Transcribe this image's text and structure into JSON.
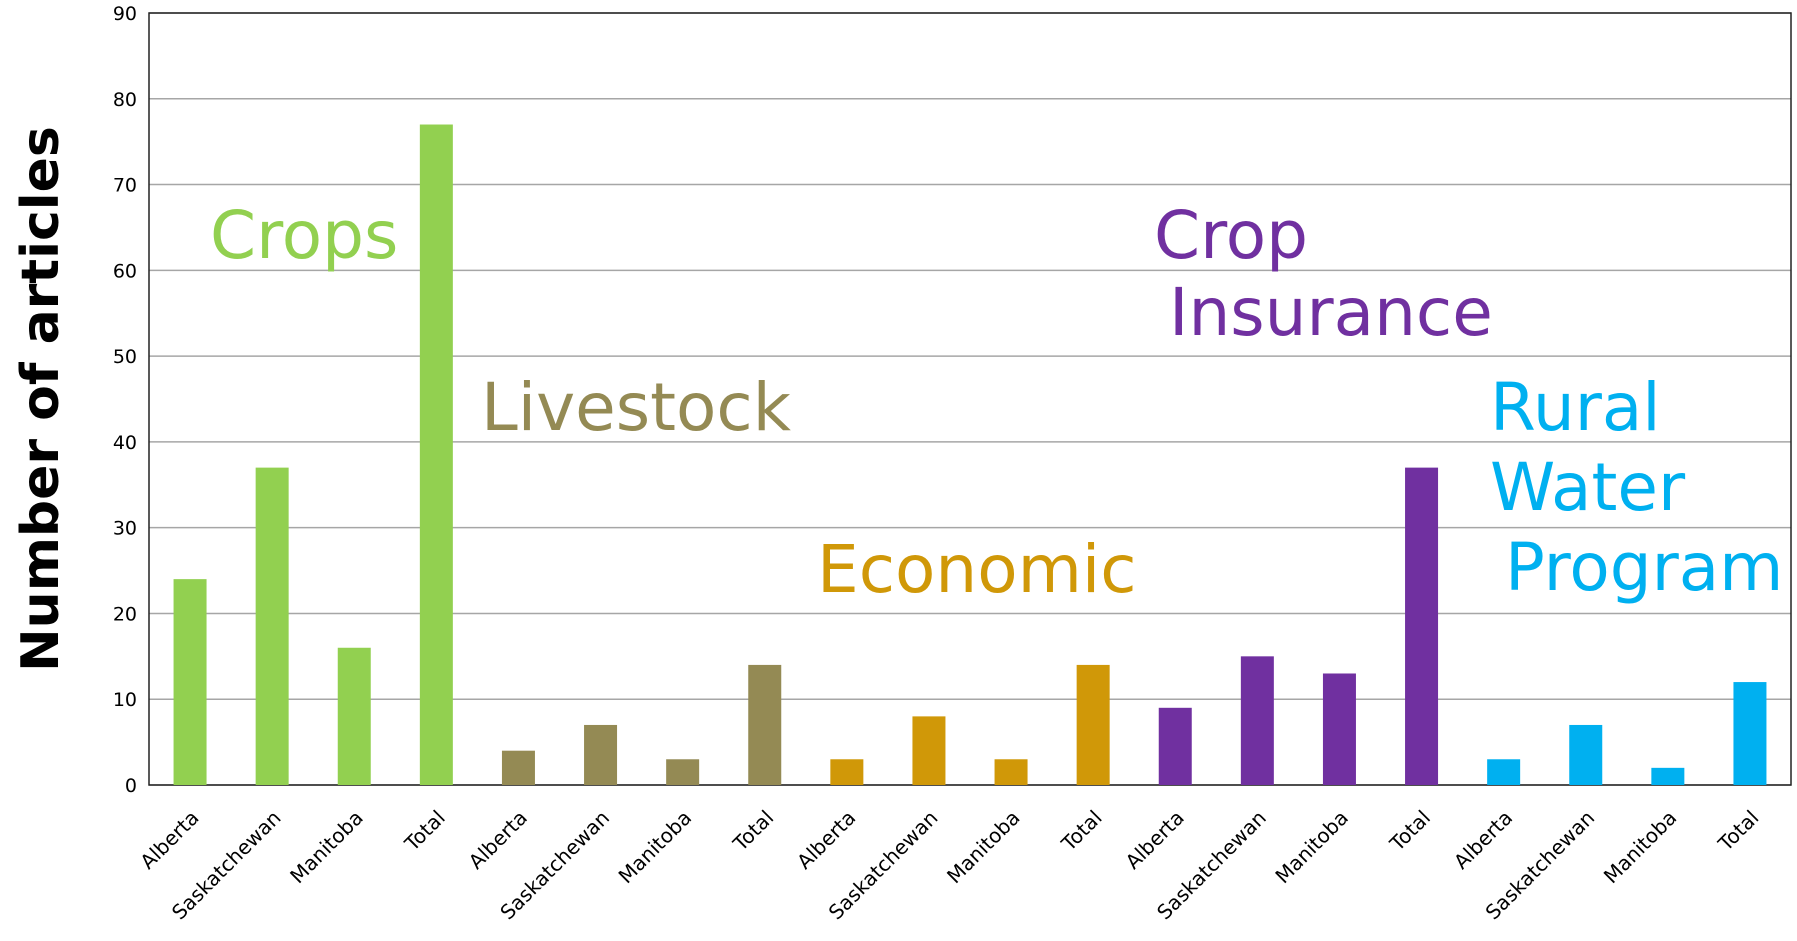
{
  "chart_data": {
    "type": "bar",
    "y_label": "Number of articles",
    "categories": [
      "Alberta",
      "Saskatchewan",
      "Manitoba",
      "Total",
      "Alberta",
      "Saskatchewan",
      "Manitoba",
      "Total",
      "Alberta",
      "Saskatchewan",
      "Manitoba",
      "Total",
      "Alberta",
      "Saskatchewan",
      "Manitoba",
      "Total",
      "Alberta",
      "Saskatchewan",
      "Manitoba",
      "Total"
    ],
    "values": [
      24,
      37,
      16,
      77,
      4,
      7,
      3,
      14,
      3,
      8,
      3,
      14,
      9,
      15,
      13,
      37,
      3,
      7,
      2,
      12
    ],
    "colors": [
      "#92d050",
      "#92d050",
      "#92d050",
      "#92d050",
      "#948a54",
      "#948a54",
      "#948a54",
      "#948a54",
      "#d09808",
      "#d09808",
      "#d09808",
      "#d09808",
      "#7030a0",
      "#7030a0",
      "#7030a0",
      "#7030a0",
      "#00b0f0",
      "#00b0f0",
      "#00b0f0",
      "#00b0f0"
    ],
    "ylim": [
      0,
      90
    ],
    "yticks": [
      0,
      10,
      20,
      30,
      40,
      50,
      60,
      70,
      80,
      90
    ],
    "grid": true,
    "annotations": [
      {
        "lines": [
          "Crops"
        ],
        "color": "#92d050"
      },
      {
        "lines": [
          "Livestock"
        ],
        "color": "#948a54"
      },
      {
        "lines": [
          "Economic"
        ],
        "color": "#d09808"
      },
      {
        "lines": [
          "Crop",
          "Insurance"
        ],
        "color": "#7030a0"
      },
      {
        "lines": [
          "Rural",
          "Water",
          "Program"
        ],
        "color": "#00b0f0"
      }
    ]
  }
}
